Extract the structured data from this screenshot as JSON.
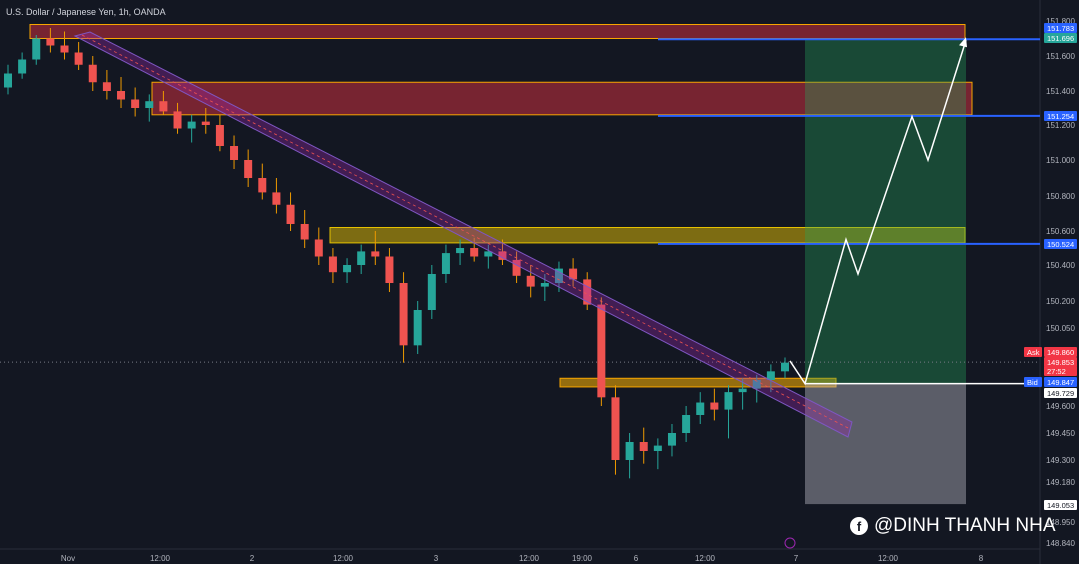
{
  "header": {
    "title": "U.S. Dollar / Japanese Yen, 1h, OANDA"
  },
  "watermark": {
    "text": "@DINH THANH NHA",
    "icon": "facebook-icon"
  },
  "chart_data": {
    "type": "candlestick",
    "symbol": "USDJPY",
    "y_ticks": [
      "151.800",
      "151.600",
      "151.400",
      "151.200",
      "151.000",
      "150.800",
      "150.600",
      "150.400",
      "150.200",
      "150.050",
      "149.600",
      "149.450",
      "149.300",
      "149.180",
      "148.950",
      "148.840"
    ],
    "x_ticks": [
      "Nov",
      "12:00",
      "2",
      "12:00",
      "3",
      "12:00",
      "19:00",
      "6",
      "12:00",
      "7",
      "12:00",
      "8"
    ],
    "price_labels": [
      {
        "text": "151.783",
        "color": "#2962ff"
      },
      {
        "text": "151.696",
        "color": "#26a69a"
      },
      {
        "text": "151.254",
        "color": "#2962ff"
      },
      {
        "text": "150.524",
        "color": "#2962ff"
      },
      {
        "tag": "Ask",
        "text": "149.860",
        "color": "#f23645"
      },
      {
        "text": "149.853",
        "color": "#f23645"
      },
      {
        "text": "27:52",
        "color": "#f23645"
      },
      {
        "tag": "Bid",
        "text": "149.847",
        "color": "#2962ff"
      },
      {
        "text": "149.729",
        "color": "#ffffff"
      },
      {
        "text": "149.053",
        "color": "#ffffff"
      }
    ],
    "levels": {
      "entry": 149.729,
      "target": 151.696,
      "stop": 149.053
    },
    "resistance_zones": [
      [
        151.7,
        151.78
      ],
      [
        151.26,
        151.45
      ],
      [
        150.53,
        150.62
      ]
    ],
    "support_zone": [
      149.71,
      149.76
    ],
    "projection_path": [
      149.86,
      149.729,
      150.55,
      150.35,
      151.25,
      151.0,
      151.69
    ],
    "candles": [
      [
        151.42,
        151.55,
        151.38,
        151.5
      ],
      [
        151.5,
        151.62,
        151.47,
        151.58
      ],
      [
        151.58,
        151.72,
        151.55,
        151.7
      ],
      [
        151.7,
        151.76,
        151.62,
        151.66
      ],
      [
        151.66,
        151.74,
        151.58,
        151.62
      ],
      [
        151.62,
        151.68,
        151.52,
        151.55
      ],
      [
        151.55,
        151.6,
        151.4,
        151.45
      ],
      [
        151.45,
        151.52,
        151.35,
        151.4
      ],
      [
        151.4,
        151.48,
        151.3,
        151.35
      ],
      [
        151.35,
        151.42,
        151.25,
        151.3
      ],
      [
        151.3,
        151.38,
        151.22,
        151.34
      ],
      [
        151.34,
        151.4,
        151.26,
        151.28
      ],
      [
        151.28,
        151.33,
        151.15,
        151.18
      ],
      [
        151.18,
        151.26,
        151.1,
        151.22
      ],
      [
        151.22,
        151.3,
        151.15,
        151.2
      ],
      [
        151.2,
        151.26,
        151.05,
        151.08
      ],
      [
        151.08,
        151.14,
        150.95,
        151.0
      ],
      [
        151.0,
        151.06,
        150.85,
        150.9
      ],
      [
        150.9,
        150.98,
        150.78,
        150.82
      ],
      [
        150.82,
        150.9,
        150.7,
        150.75
      ],
      [
        150.75,
        150.82,
        150.6,
        150.64
      ],
      [
        150.64,
        150.72,
        150.5,
        150.55
      ],
      [
        150.55,
        150.62,
        150.4,
        150.45
      ],
      [
        150.45,
        150.5,
        150.3,
        150.36
      ],
      [
        150.36,
        150.44,
        150.3,
        150.4
      ],
      [
        150.4,
        150.52,
        150.35,
        150.48
      ],
      [
        150.48,
        150.6,
        150.4,
        150.45
      ],
      [
        150.45,
        150.5,
        150.25,
        150.3
      ],
      [
        150.3,
        150.36,
        149.85,
        149.95
      ],
      [
        149.95,
        150.2,
        149.9,
        150.15
      ],
      [
        150.15,
        150.4,
        150.1,
        150.35
      ],
      [
        150.35,
        150.52,
        150.3,
        150.47
      ],
      [
        150.47,
        150.55,
        150.4,
        150.5
      ],
      [
        150.5,
        150.56,
        150.42,
        150.45
      ],
      [
        150.45,
        150.52,
        150.38,
        150.48
      ],
      [
        150.48,
        150.55,
        150.4,
        150.43
      ],
      [
        150.43,
        150.48,
        150.3,
        150.34
      ],
      [
        150.34,
        150.4,
        150.22,
        150.28
      ],
      [
        150.28,
        150.35,
        150.2,
        150.3
      ],
      [
        150.3,
        150.42,
        150.25,
        150.38
      ],
      [
        150.38,
        150.44,
        150.28,
        150.32
      ],
      [
        150.32,
        150.36,
        150.15,
        150.18
      ],
      [
        150.18,
        150.22,
        149.6,
        149.65
      ],
      [
        149.65,
        149.72,
        149.22,
        149.3
      ],
      [
        149.3,
        149.45,
        149.2,
        149.4
      ],
      [
        149.4,
        149.48,
        149.28,
        149.35
      ],
      [
        149.35,
        149.42,
        149.25,
        149.38
      ],
      [
        149.38,
        149.5,
        149.32,
        149.45
      ],
      [
        149.45,
        149.6,
        149.4,
        149.55
      ],
      [
        149.55,
        149.68,
        149.5,
        149.62
      ],
      [
        149.62,
        149.7,
        149.52,
        149.58
      ],
      [
        149.58,
        149.72,
        149.42,
        149.68
      ],
      [
        149.68,
        149.76,
        149.58,
        149.7
      ],
      [
        149.7,
        149.78,
        149.62,
        149.75
      ],
      [
        149.75,
        149.84,
        149.68,
        149.8
      ],
      [
        149.8,
        149.88,
        149.76,
        149.85
      ]
    ]
  }
}
